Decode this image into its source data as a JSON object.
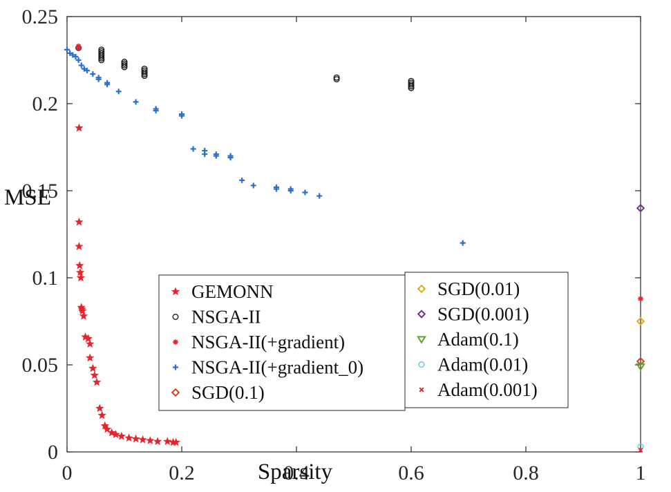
{
  "chart_data": {
    "type": "scatter",
    "xlabel": "Sparsity",
    "ylabel": "MSE",
    "xlim": [
      0,
      1
    ],
    "ylim": [
      0,
      0.25
    ],
    "x_ticks": [
      "0",
      "0.2",
      "0.4",
      "0.6",
      "0.8",
      "1"
    ],
    "y_ticks": [
      "0",
      "0.05",
      "0.1",
      "0.15",
      "0.2",
      "0.25"
    ],
    "grid": false,
    "legend_placement": "center (two boxes)",
    "series": [
      {
        "name": "GEMONN",
        "marker": "star",
        "color": "#e8242b",
        "x": [
          0.021,
          0.021,
          0.021,
          0.022,
          0.023,
          0.024,
          0.025,
          0.026,
          0.027,
          0.029,
          0.032,
          0.037,
          0.04,
          0.04,
          0.045,
          0.048,
          0.052,
          0.057,
          0.061,
          0.066,
          0.07,
          0.078,
          0.085,
          0.095,
          0.108,
          0.12,
          0.132,
          0.145,
          0.158,
          0.175,
          0.185,
          0.19
        ],
        "y": [
          0.186,
          0.132,
          0.118,
          0.107,
          0.103,
          0.1,
          0.083,
          0.082,
          0.081,
          0.078,
          0.066,
          0.065,
          0.062,
          0.054,
          0.048,
          0.044,
          0.04,
          0.025,
          0.021,
          0.015,
          0.013,
          0.011,
          0.01,
          0.009,
          0.008,
          0.0075,
          0.007,
          0.0065,
          0.006,
          0.006,
          0.0055,
          0.0055
        ]
      },
      {
        "name": "NSGA-II",
        "marker": "circle",
        "color": "#1a1a1a",
        "x": [
          0.02,
          0.06,
          0.06,
          0.06,
          0.06,
          0.06,
          0.06,
          0.06,
          0.1,
          0.1,
          0.1,
          0.1,
          0.135,
          0.135,
          0.135,
          0.135,
          0.135,
          0.47,
          0.47,
          0.6,
          0.6,
          0.6,
          0.6,
          0.6
        ],
        "y": [
          0.232,
          0.231,
          0.23,
          0.229,
          0.228,
          0.227,
          0.226,
          0.225,
          0.224,
          0.223,
          0.222,
          0.221,
          0.22,
          0.219,
          0.218,
          0.217,
          0.216,
          0.215,
          0.214,
          0.213,
          0.212,
          0.211,
          0.21,
          0.209
        ]
      },
      {
        "name": "NSGA-II(+gradient)",
        "marker": "asterisk",
        "color": "#e8242b",
        "x": [
          0.02,
          0.02,
          1.0
        ],
        "y": [
          0.233,
          0.232,
          0.088
        ]
      },
      {
        "name": "NSGA-II(+gradient_0)",
        "marker": "plus",
        "color": "#2a6fc9",
        "x": [
          0.0,
          0.005,
          0.01,
          0.015,
          0.02,
          0.025,
          0.03,
          0.035,
          0.045,
          0.055,
          0.055,
          0.07,
          0.07,
          0.09,
          0.12,
          0.155,
          0.155,
          0.2,
          0.2,
          0.22,
          0.24,
          0.24,
          0.26,
          0.26,
          0.285,
          0.285,
          0.305,
          0.325,
          0.365,
          0.365,
          0.39,
          0.39,
          0.415,
          0.44,
          0.69
        ],
        "y": [
          0.231,
          0.229,
          0.228,
          0.227,
          0.225,
          0.222,
          0.22,
          0.219,
          0.217,
          0.215,
          0.214,
          0.212,
          0.211,
          0.207,
          0.201,
          0.197,
          0.196,
          0.194,
          0.193,
          0.174,
          0.173,
          0.171,
          0.171,
          0.17,
          0.17,
          0.169,
          0.156,
          0.153,
          0.152,
          0.151,
          0.151,
          0.15,
          0.149,
          0.147,
          0.12
        ]
      },
      {
        "name": "SGD(0.1)",
        "marker": "diamond",
        "color": "#d9411e",
        "x": [
          1.0
        ],
        "y": [
          0.052
        ]
      },
      {
        "name": "SGD(0.01)",
        "marker": "diamond",
        "color": "#e6a81a",
        "x": [
          1.0
        ],
        "y": [
          0.075
        ]
      },
      {
        "name": "SGD(0.001)",
        "marker": "diamond",
        "color": "#7b2d8e",
        "x": [
          1.0
        ],
        "y": [
          0.14
        ]
      },
      {
        "name": "Adam(0.1)",
        "marker": "triangle-down",
        "color": "#5aa82a",
        "x": [
          1.0
        ],
        "y": [
          0.049
        ]
      },
      {
        "name": "Adam(0.01)",
        "marker": "circle",
        "color": "#5cc8d8",
        "x": [
          1.0
        ],
        "y": [
          0.003
        ]
      },
      {
        "name": "Adam(0.001)",
        "marker": "x",
        "color": "#e8242b",
        "x": [
          1.0
        ],
        "y": [
          0.001
        ]
      }
    ],
    "legend": {
      "left": [
        "GEMONN",
        "NSGA-II",
        "NSGA-II(+gradient)",
        "NSGA-II(+gradient_0)",
        "SGD(0.1)"
      ],
      "right": [
        "SGD(0.01)",
        "SGD(0.001)",
        "Adam(0.1)",
        "Adam(0.01)",
        "Adam(0.001)"
      ]
    }
  }
}
